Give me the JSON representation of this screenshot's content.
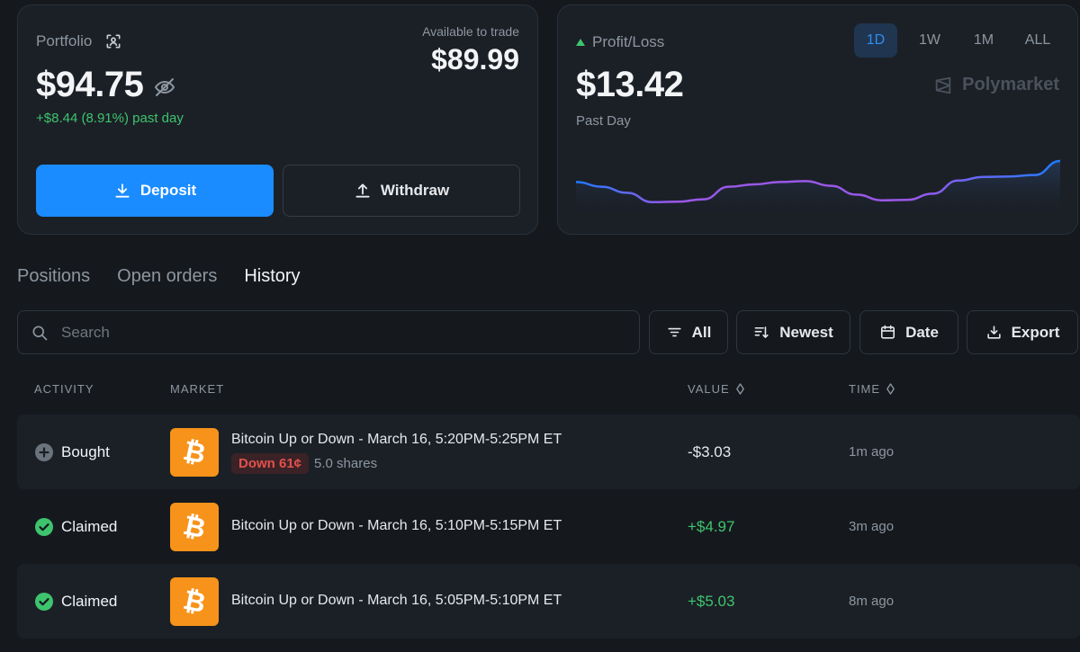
{
  "portfolio": {
    "label": "Portfolio",
    "balance": "$94.75",
    "change": "+$8.44 (8.91%) past day",
    "available_label": "Available to trade",
    "available_value": "$89.99",
    "deposit_label": "Deposit",
    "withdraw_label": "Withdraw"
  },
  "pnl": {
    "label": "Profit/Loss",
    "value": "$13.42",
    "period": "Past Day",
    "ranges": [
      "1D",
      "1W",
      "1M",
      "ALL"
    ],
    "active_range": "1D",
    "brand": "Polymarket"
  },
  "chart_data": {
    "type": "line",
    "title": "",
    "xlabel": "",
    "ylabel": "",
    "values": [
      0.55,
      0.45,
      0.32,
      0.12,
      0.13,
      0.18,
      0.45,
      0.5,
      0.55,
      0.57,
      0.47,
      0.28,
      0.16,
      0.17,
      0.3,
      0.58,
      0.66,
      0.67,
      0.7,
      1.0
    ],
    "grid": false,
    "legend": "none",
    "colors": [
      "#1e7bff",
      "#9a58e8"
    ]
  },
  "tabs": [
    "Positions",
    "Open orders",
    "History"
  ],
  "active_tab": "History",
  "search": {
    "placeholder": "Search"
  },
  "filters": {
    "filter": "All",
    "sort": "Newest",
    "date": "Date",
    "export": "Export"
  },
  "columns": {
    "activity": "ACTIVITY",
    "market": "MARKET",
    "value": "VALUE",
    "time": "TIME"
  },
  "rows": [
    {
      "activity": "Bought",
      "market": "Bitcoin Up or Down - March 16, 5:20PM-5:25PM ET",
      "outcome": "Down 61¢",
      "shares": "5.0 shares",
      "value": "-$3.03",
      "time": "1m ago"
    },
    {
      "activity": "Claimed",
      "market": "Bitcoin Up or Down - March 16, 5:10PM-5:15PM ET",
      "value": "+$4.97",
      "time": "3m ago"
    },
    {
      "activity": "Claimed",
      "market": "Bitcoin Up or Down - March 16, 5:05PM-5:10PM ET",
      "value": "+$5.03",
      "time": "8m ago"
    }
  ],
  "colors": {
    "accent": "#1a8cff",
    "positive": "#3ec46d",
    "negative": "#e2514c",
    "bitcoin": "#f7931a"
  }
}
